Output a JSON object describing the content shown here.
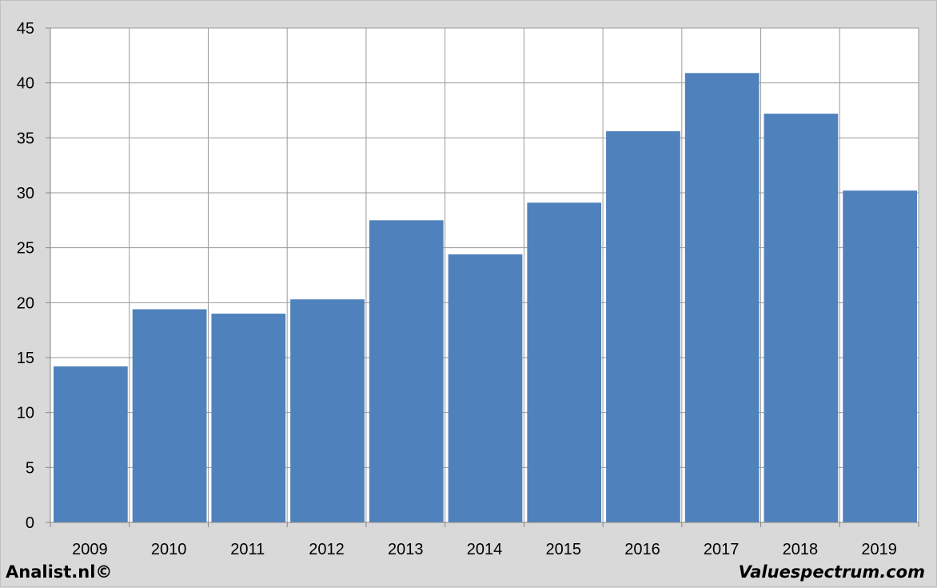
{
  "footer": {
    "left": "Analist.nl©",
    "right": "Valuespectrum.com"
  },
  "colors": {
    "bar": "#4f81bd",
    "plot_background": "#ffffff",
    "page_background": "#d9d9d9",
    "grid": "#9a9a9a"
  },
  "chart_data": {
    "type": "bar",
    "categories": [
      "2009",
      "2010",
      "2011",
      "2012",
      "2013",
      "2014",
      "2015",
      "2016",
      "2017",
      "2018",
      "2019"
    ],
    "values": [
      14.2,
      19.4,
      19.0,
      20.3,
      27.5,
      24.4,
      29.1,
      35.6,
      40.9,
      37.2,
      30.2
    ],
    "yticks": [
      "0",
      "5",
      "10",
      "15",
      "20",
      "25",
      "30",
      "35",
      "40",
      "45"
    ],
    "ylim": [
      0,
      45
    ],
    "grid": true,
    "legend": "none"
  }
}
